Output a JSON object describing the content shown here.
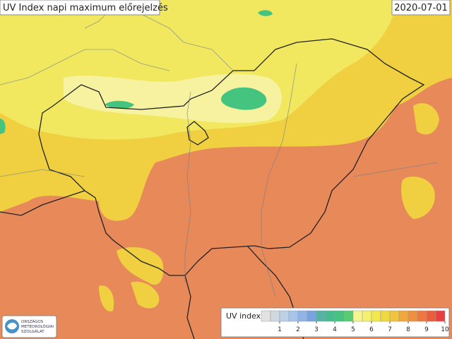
{
  "header": {
    "title": "UV Index napi maximum előrejelzés",
    "date": "2020-07-01"
  },
  "legend": {
    "label": "UV index",
    "ticks": [
      1,
      2,
      3,
      4,
      5,
      6,
      7,
      8,
      9,
      10
    ],
    "colors": [
      "#e2e2e2",
      "#d0d8e0",
      "#bcd0e6",
      "#a8c4ea",
      "#90b4e6",
      "#78a2e0",
      "#52b4a2",
      "#46bc8e",
      "#44c47e",
      "#58cc72",
      "#f6f690",
      "#f4f070",
      "#f2e84e",
      "#f0d840",
      "#f0c43c",
      "#f0a83c",
      "#ee9040",
      "#ec7840",
      "#ea5c3e",
      "#e84040"
    ]
  },
  "logo": {
    "lines": [
      "ORSZÁGOS",
      "METEOROLÓGIAI",
      "SZOLGÁLAT"
    ]
  }
}
